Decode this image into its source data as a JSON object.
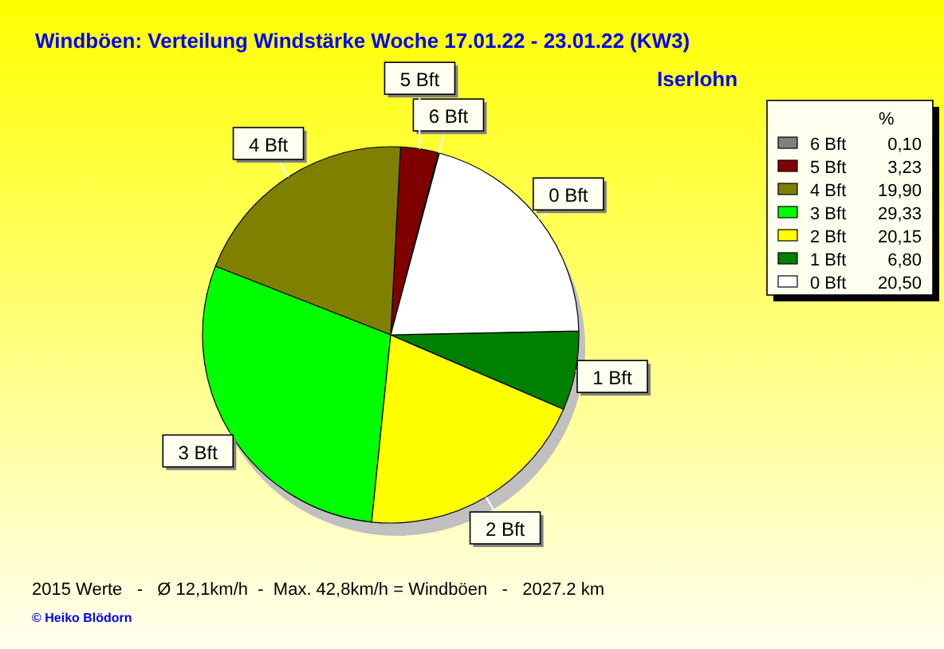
{
  "chart_data": {
    "type": "pie",
    "title": "Windböen: Verteilung Windstärke  Woche 17.01.22 - 23.01.22 (KW3)",
    "subtitle": "Iserlohn",
    "legend_title": "%",
    "categories": [
      "6 Bft",
      "5 Bft",
      "4 Bft",
      "3 Bft",
      "2 Bft",
      "1 Bft",
      "0 Bft"
    ],
    "values": [
      0.1,
      3.23,
      19.9,
      29.33,
      20.15,
      6.8,
      20.5
    ],
    "value_labels": [
      "0,10",
      "3,23",
      "19,90",
      "29,33",
      "20,15",
      "6,80",
      "20,50"
    ],
    "colors": [
      "#808080",
      "#800000",
      "#808000",
      "#00ff00",
      "#ffff00",
      "#008000",
      "#ffffff"
    ],
    "legend": "top right",
    "annotations": [
      "2015 Werte   -   Ø 12,1km/h  -  Max. 42,8km/h = Windböen   -   2027.2 km",
      "© Heiko Blödorn"
    ]
  }
}
